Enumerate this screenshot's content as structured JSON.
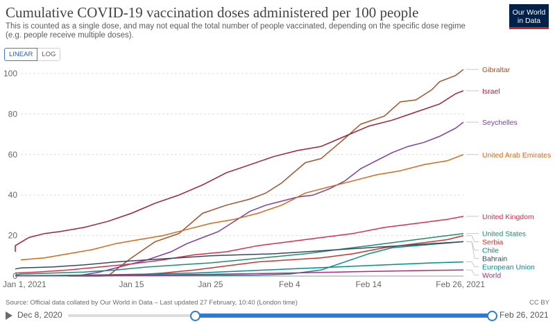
{
  "header": {
    "title": "Cumulative COVID-19 vaccination doses administered per 100 people",
    "subtitle": "This is counted as a single dose, and may not equal the total number of people vaccinated, depending on the specific dose regime (e.g. people receive multiple doses).",
    "logo_line1": "Our World",
    "logo_line2": "in Data"
  },
  "controls": {
    "linear_label": "LINEAR",
    "log_label": "LOG",
    "active_scale": "linear"
  },
  "footer": {
    "source": "Source: Official data collated by Our World in Data – Last updated 27 February, 10:40 (London time)",
    "license": "CC BY"
  },
  "timeline": {
    "start_label": "Dec 8, 2020",
    "end_label": "Feb 26, 2021"
  },
  "chart_data": {
    "type": "line",
    "title": "Cumulative COVID-19 vaccination doses administered per 100 people",
    "xlabel": "",
    "ylabel": "",
    "xlim": [
      0,
      56
    ],
    "ylim": [
      0,
      100
    ],
    "y_ticks": [
      0,
      20,
      40,
      60,
      80,
      100
    ],
    "x_ticks": [
      {
        "day": 0,
        "label": "Jan 1, 2021"
      },
      {
        "day": 14,
        "label": "Jan 15"
      },
      {
        "day": 24,
        "label": "Jan 25"
      },
      {
        "day": 34,
        "label": "Feb 4"
      },
      {
        "day": 44,
        "label": "Feb 14"
      },
      {
        "day": 56,
        "label": "Feb 26, 2021"
      }
    ],
    "grid": "horizontal dashed",
    "legend": "right, labels at line ends",
    "series": [
      {
        "name": "Gibraltar",
        "color": "#a0522d",
        "x": [
          11,
          14,
          17,
          20,
          23,
          26,
          29,
          31,
          33,
          36,
          38,
          41,
          43,
          46,
          48,
          50,
          52,
          53,
          55,
          56
        ],
        "y": [
          0,
          9,
          17,
          21,
          31,
          35,
          38,
          41,
          46,
          56,
          58,
          68,
          75,
          79,
          86,
          87,
          92,
          96,
          99,
          102
        ]
      },
      {
        "name": "Israel",
        "color": "#9b2335",
        "x": [
          -3,
          -1,
          1,
          3,
          5,
          8,
          11,
          14,
          17,
          20,
          23,
          26,
          29,
          32,
          35,
          38,
          41,
          44,
          47,
          50,
          53,
          55,
          56
        ],
        "y": [
          12,
          15,
          19,
          21,
          22,
          24,
          27,
          31,
          36,
          40,
          45,
          51,
          55,
          59,
          62,
          64,
          69,
          74,
          77,
          81,
          85,
          90,
          91.5
        ]
      },
      {
        "name": "Seychelles",
        "color": "#7b3fa1",
        "x": [
          7,
          10,
          13,
          16,
          19,
          21,
          23,
          25,
          27,
          29,
          31,
          33,
          35,
          37,
          39,
          41,
          43,
          45,
          47,
          49,
          51,
          53,
          55,
          56
        ],
        "y": [
          0,
          2,
          5,
          8,
          12,
          16,
          19,
          22,
          27,
          32,
          35,
          37,
          39,
          40,
          43,
          47,
          53,
          57,
          61,
          64,
          66,
          69,
          73,
          76
        ]
      },
      {
        "name": "United Arab Emirates",
        "color": "#d2691e",
        "x": [
          0,
          3,
          6,
          9,
          12,
          15,
          18,
          21,
          24,
          27,
          30,
          33,
          36,
          39,
          42,
          45,
          48,
          51,
          54,
          56
        ],
        "y": [
          8,
          9,
          11,
          13,
          16,
          18,
          20,
          23,
          26,
          28,
          31,
          35,
          41,
          44,
          47,
          50,
          52,
          55,
          57,
          60
        ]
      },
      {
        "name": "United Kingdom",
        "color": "#d62f4e",
        "x": [
          -2,
          2,
          6,
          10,
          14,
          18,
          22,
          26,
          30,
          34,
          38,
          42,
          46,
          50,
          54,
          56
        ],
        "y": [
          1.5,
          2,
          3,
          4.5,
          6,
          8,
          10.5,
          12,
          15,
          17,
          19,
          21,
          24,
          26,
          28,
          29.5
        ]
      },
      {
        "name": "United States",
        "color": "#1f8a70",
        "x": [
          -3,
          0,
          4,
          8,
          12,
          16,
          20,
          24,
          28,
          32,
          36,
          40,
          44,
          48,
          52,
          56
        ],
        "y": [
          0.5,
          1,
          1.5,
          2,
          3,
          4.5,
          5.5,
          6.5,
          8,
          9.5,
          11,
          13,
          15,
          17,
          19,
          21
        ]
      },
      {
        "name": "Serbia",
        "color": "#c0392b",
        "x": [
          6,
          10,
          14,
          18,
          22,
          26,
          30,
          34,
          38,
          42,
          46,
          50,
          54,
          56
        ],
        "y": [
          0,
          0,
          0.5,
          1.5,
          3,
          5,
          7,
          8,
          9,
          11,
          14,
          16,
          18,
          20
        ]
      },
      {
        "name": "Chile",
        "color": "#0e8a8a",
        "x": [
          -3,
          4,
          12,
          20,
          26,
          30,
          34,
          38,
          41,
          44,
          47,
          50,
          53,
          56
        ],
        "y": [
          0.1,
          0.1,
          0.2,
          0.3,
          0.4,
          0.5,
          1,
          3,
          7,
          11,
          14,
          15,
          16,
          17
        ]
      },
      {
        "name": "Bahrain",
        "color": "#34495e",
        "x": [
          -3,
          0,
          4,
          8,
          12,
          16,
          20,
          24,
          28,
          32,
          36,
          40,
          44,
          48,
          52,
          56
        ],
        "y": [
          3.5,
          4,
          4.5,
          5.5,
          7,
          8,
          9,
          10,
          10.5,
          11,
          12,
          13,
          14,
          15,
          16,
          17
        ]
      },
      {
        "name": "European Union",
        "color": "#008c8c",
        "x": [
          -3,
          4,
          10,
          16,
          22,
          28,
          34,
          40,
          46,
          52,
          56
        ],
        "y": [
          0.2,
          0.3,
          0.6,
          1,
          1.5,
          2.5,
          3.5,
          4.5,
          5.5,
          6.5,
          7
        ]
      },
      {
        "name": "World",
        "color": "#b02a82",
        "x": [
          -3,
          4,
          10,
          16,
          22,
          28,
          34,
          40,
          46,
          52,
          56
        ],
        "y": [
          0.1,
          0.2,
          0.3,
          0.5,
          0.8,
          1.1,
          1.5,
          2,
          2.4,
          2.8,
          3
        ]
      }
    ]
  }
}
